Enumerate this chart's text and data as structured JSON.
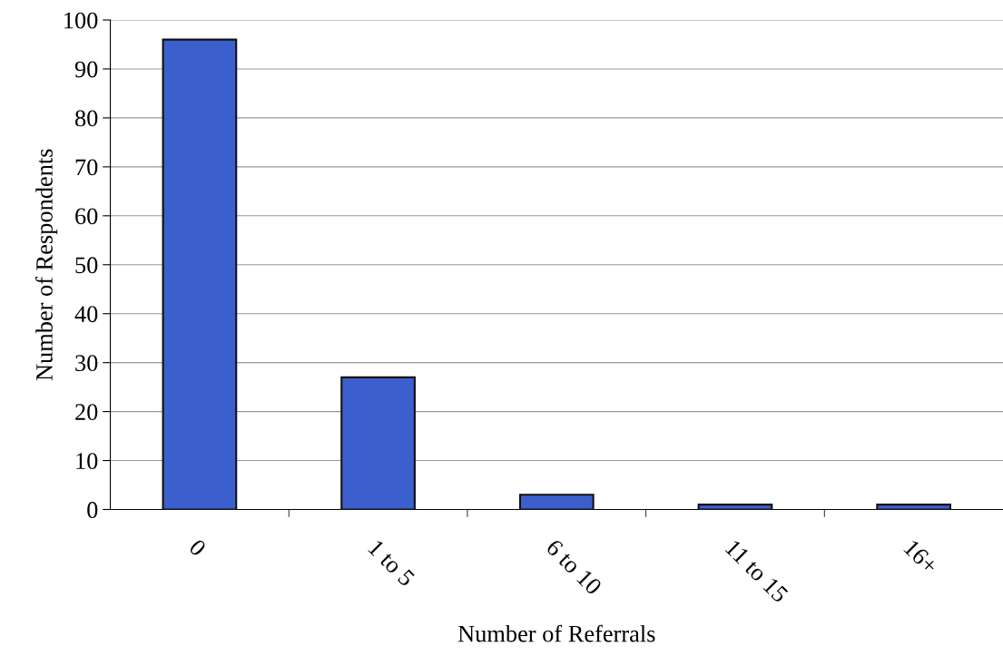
{
  "chart_data": {
    "type": "bar",
    "xlabel": "Number of Referrals",
    "ylabel": "Number of Respondents",
    "categories": [
      "0",
      "1 to 5",
      "6 to 10",
      "11 to 15",
      "16+"
    ],
    "values": [
      96,
      27,
      3,
      1,
      1
    ],
    "color": "#3b5fcc",
    "ylim": [
      0,
      100
    ],
    "yticks": [
      0,
      10,
      20,
      30,
      40,
      50,
      60,
      70,
      80,
      90,
      100
    ],
    "grid": "y"
  }
}
